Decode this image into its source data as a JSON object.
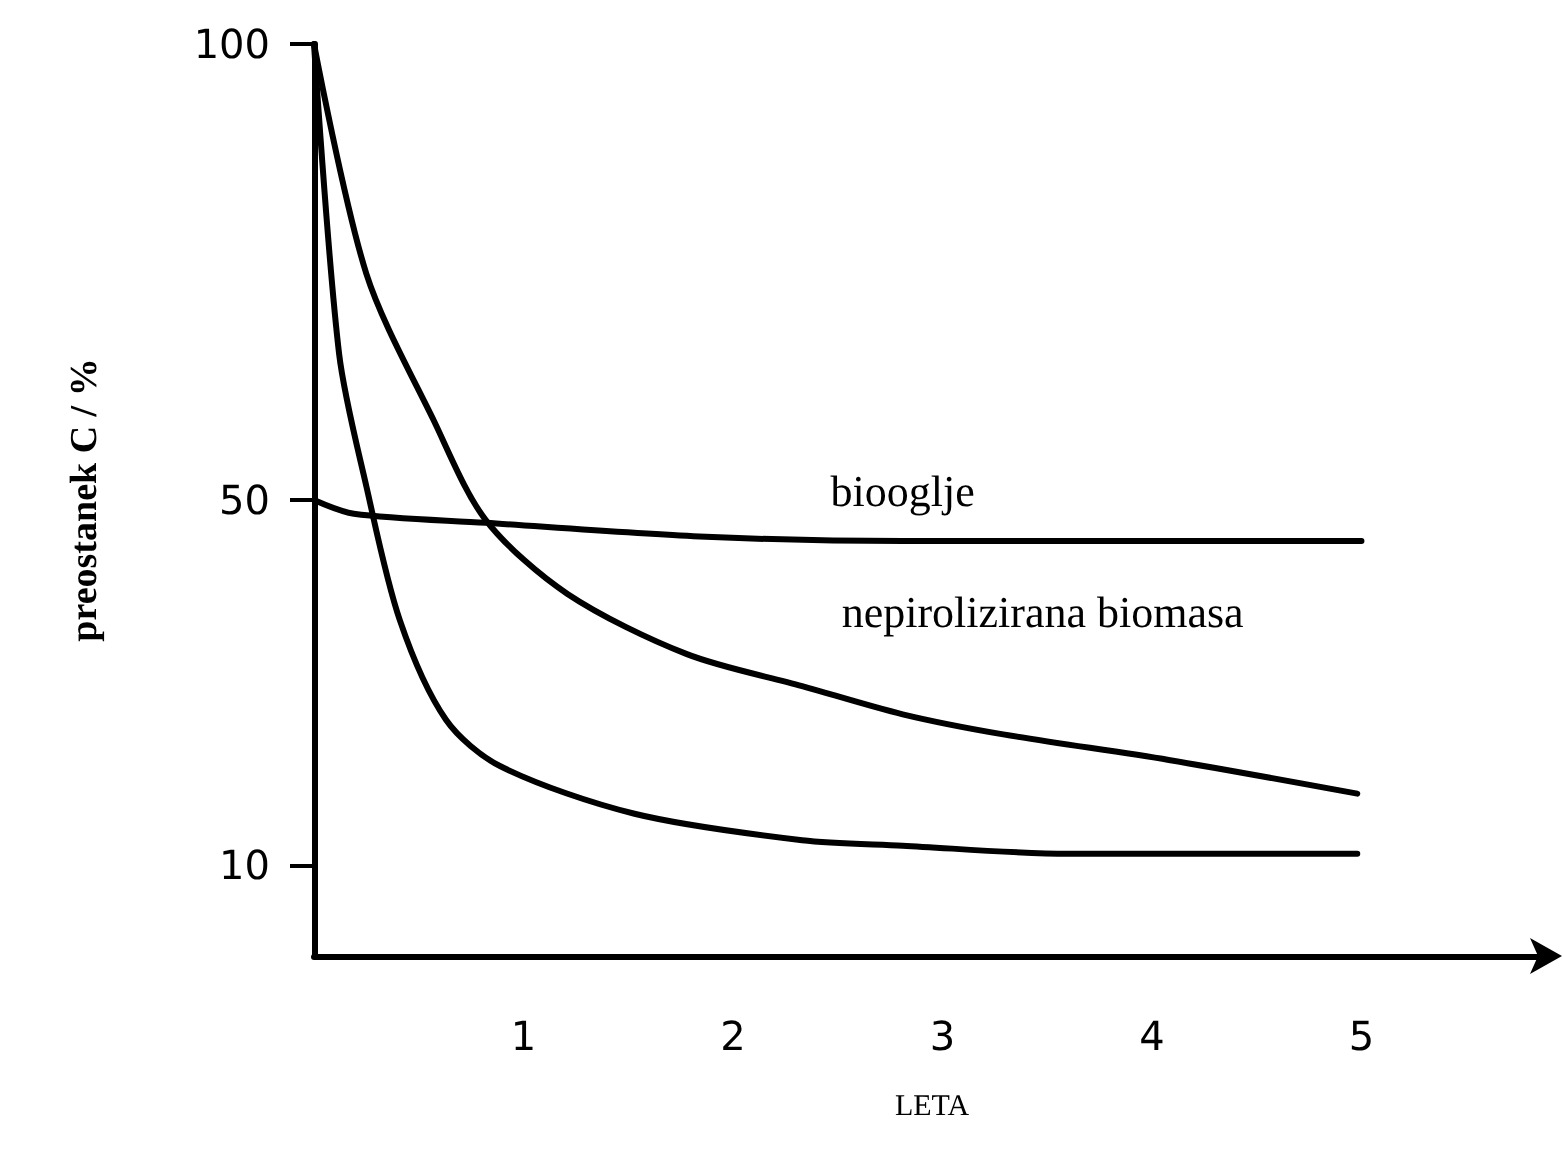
{
  "chart_data": {
    "type": "line",
    "xlabel": "LETA",
    "ylabel": "preostanek C / %",
    "xlim": [
      0,
      5.9
    ],
    "xticks": [
      1,
      2,
      3,
      4,
      5
    ],
    "ylim": [
      0,
      100
    ],
    "yticks": [
      10,
      50,
      100
    ],
    "grid": false,
    "legend": false,
    "marker": "none",
    "line_style": "solid",
    "series": [
      {
        "name": "biooglje",
        "color": "#000000",
        "x": [
          0,
          0.19,
          0.82,
          1.84,
          2.81,
          5
        ],
        "values": [
          50,
          48.5,
          47.5,
          46,
          45.5,
          45.5
        ]
      },
      {
        "name": "nepirolizirana biomasa",
        "color": "#000000",
        "x": [
          0,
          0.25,
          0.57,
          0.82,
          1.21,
          1.78,
          2.33,
          2.81,
          3.29,
          4.08,
          4.98
        ],
        "values": [
          100,
          74.8,
          58.8,
          47.8,
          39.7,
          33.1,
          29.6,
          26.5,
          24.3,
          21.5,
          17.8
        ]
      },
      {
        "color": "#000000",
        "x": [
          0,
          0.12,
          0.25,
          0.41,
          0.63,
          0.89,
          1.53,
          2.33,
          2.81,
          3.6,
          4.98
        ],
        "values": [
          100,
          66,
          51.5,
          36.8,
          25.9,
          20.8,
          15.6,
          12.7,
          12.1,
          11.2,
          11.2
        ]
      }
    ]
  }
}
